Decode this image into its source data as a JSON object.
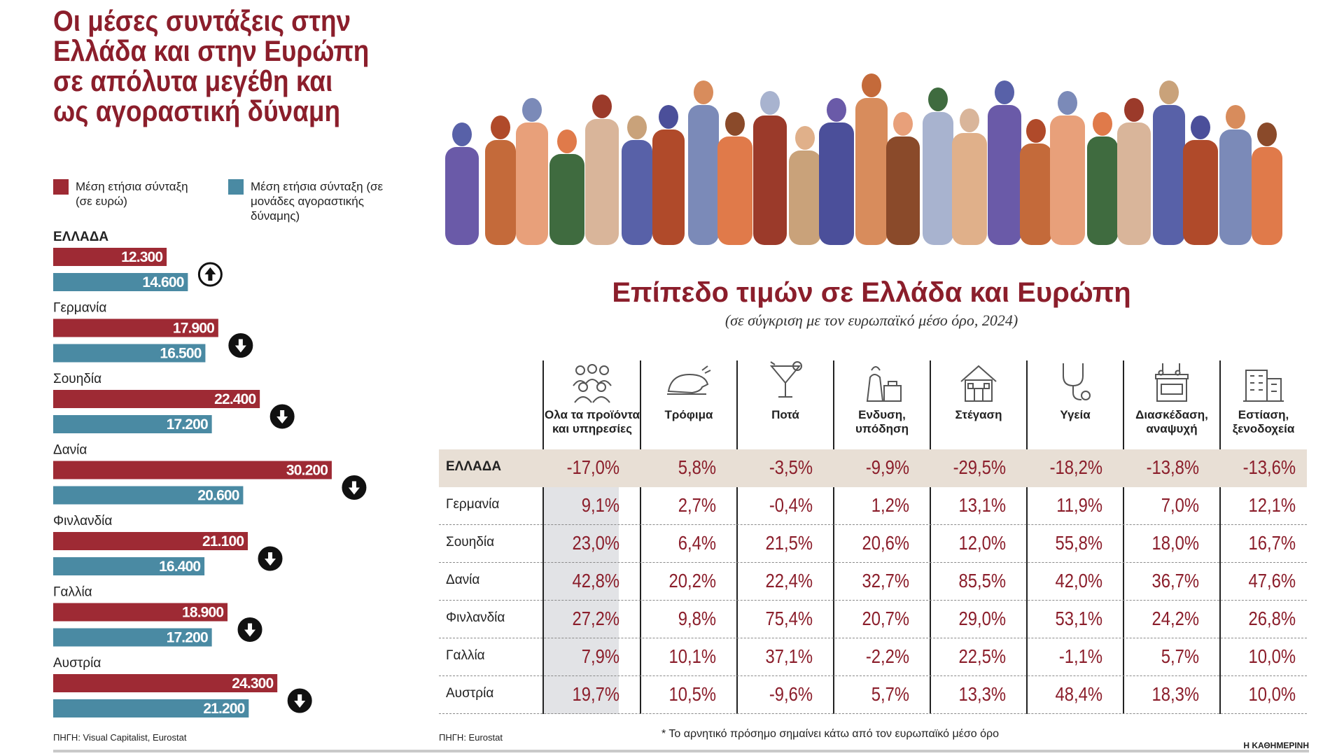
{
  "left": {
    "title": "Οι μέσες συντάξεις στην Ελλάδα και στην Ευρώπη σε απόλυτα μεγέθη και ως αγοραστική δύναμη",
    "legend": [
      {
        "label": "Μέση ετήσια σύνταξη (σε ευρώ)",
        "color": "#9e2a34"
      },
      {
        "label": "Μέση ετήσια σύνταξη (σε μονάδες αγοραστικής δύναμης)",
        "color": "#4a8aa3"
      }
    ],
    "source": "ΠΗΓΗ: Visual Capitalist, Eurostat"
  },
  "chart_data": {
    "type": "bar",
    "orientation": "horizontal",
    "categories": [
      "ΕΛΛΑΔΑ",
      "Γερμανία",
      "Σουηδία",
      "Δανία",
      "Φινλανδία",
      "Γαλλία",
      "Αυστρία"
    ],
    "series": [
      {
        "name": "Μέση ετήσια σύνταξη (σε ευρώ)",
        "color": "#9e2a34",
        "values": [
          12300,
          17900,
          22400,
          30200,
          21100,
          18900,
          24300
        ],
        "labels": [
          "12.300",
          "17.900",
          "22.400",
          "30.200",
          "21.100",
          "18.900",
          "24.300"
        ]
      },
      {
        "name": "Μέση ετήσια σύνταξη (σε μονάδες αγοραστικής δύναμης)",
        "color": "#4a8aa3",
        "values": [
          14600,
          16500,
          17200,
          20600,
          16400,
          17200,
          21200
        ],
        "labels": [
          "14.600",
          "16.500",
          "17.200",
          "20.600",
          "16.400",
          "17.200",
          "21.200"
        ]
      }
    ],
    "arrows": [
      "up",
      "down",
      "down",
      "down",
      "down",
      "down",
      "down"
    ],
    "xlim": [
      0,
      34000
    ]
  },
  "right": {
    "title": "Επίπεδο τιμών σε Ελλάδα και Ευρώπη",
    "subtitle": "(σε σύγκριση με τον ευρωπαϊκό μέσο όρο, 2024)",
    "columns": [
      {
        "label": "Ολα τα προϊόντα και υπηρεσίες",
        "icon": "people-icon"
      },
      {
        "label": "Τρόφιμα",
        "icon": "roast-chicken-icon"
      },
      {
        "label": "Ποτά",
        "icon": "cocktail-icon"
      },
      {
        "label": "Ενδυση, υπόδηση",
        "icon": "clothes-icon"
      },
      {
        "label": "Στέγαση",
        "icon": "house-icon"
      },
      {
        "label": "Υγεία",
        "icon": "stethoscope-icon"
      },
      {
        "label": "Διασκέδαση, αναψυχή",
        "icon": "music-venue-icon"
      },
      {
        "label": "Εστίαση, ξενοδοχεία",
        "icon": "hotel-icon"
      }
    ],
    "rows": [
      {
        "country": "ΕΛΛΑΔΑ",
        "values": [
          "-17,0%",
          "5,8%",
          "-3,5%",
          "-9,9%",
          "-29,5%",
          "-18,2%",
          "-13,8%",
          "-13,6%"
        ]
      },
      {
        "country": "Γερμανία",
        "values": [
          "9,1%",
          "2,7%",
          "-0,4%",
          "1,2%",
          "13,1%",
          "11,9%",
          "7,0%",
          "12,1%"
        ]
      },
      {
        "country": "Σουηδία",
        "values": [
          "23,0%",
          "6,4%",
          "21,5%",
          "20,6%",
          "12,0%",
          "55,8%",
          "18,0%",
          "16,7%"
        ]
      },
      {
        "country": "Δανία",
        "values": [
          "42,8%",
          "20,2%",
          "22,4%",
          "32,7%",
          "85,5%",
          "42,0%",
          "36,7%",
          "47,6%"
        ]
      },
      {
        "country": "Φινλανδία",
        "values": [
          "27,2%",
          "9,8%",
          "75,4%",
          "20,7%",
          "29,0%",
          "53,1%",
          "24,2%",
          "26,8%"
        ]
      },
      {
        "country": "Γαλλία",
        "values": [
          "7,9%",
          "10,1%",
          "37,1%",
          "-2,2%",
          "22,5%",
          "-1,1%",
          "5,7%",
          "10,0%"
        ]
      },
      {
        "country": "Αυστρία",
        "values": [
          "19,7%",
          "10,5%",
          "-9,6%",
          "5,7%",
          "13,3%",
          "48,4%",
          "18,3%",
          "10,0%"
        ]
      }
    ],
    "source": "ΠΗΓΗ: Eurostat",
    "footnote": "* Το αρνητικό πρόσημο σημαίνει κάτω από τον ευρωπαϊκό μέσο όρο"
  },
  "brand": "Η ΚΑΘΗΜΕΡΙΝΗ",
  "colors": {
    "accent": "#8b1e2b",
    "greece_row_bg": "#e8dfd5",
    "highlight_col": "#e2e3e6"
  }
}
